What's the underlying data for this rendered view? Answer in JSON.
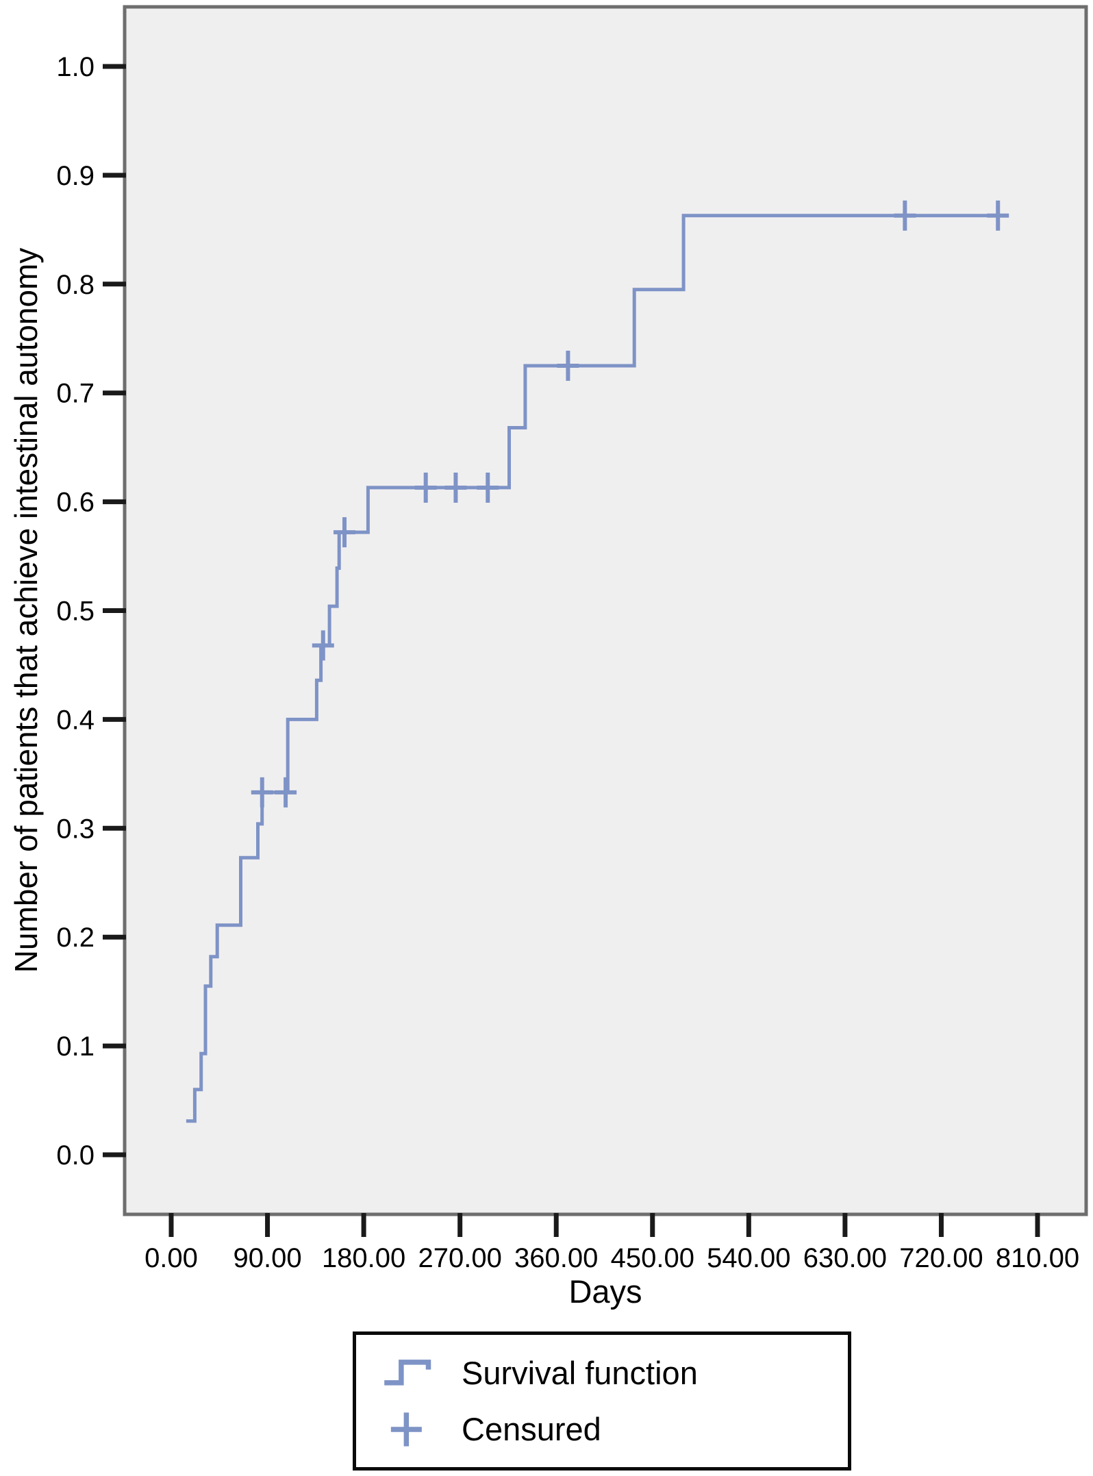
{
  "chart_data": {
    "type": "line",
    "subtype": "kaplan-meier-step",
    "title": "",
    "xlabel": "Days",
    "ylabel": "Number of patients that achieve intestinal autonomy",
    "xlim": [
      -43,
      855
    ],
    "ylim": [
      -0.055,
      1.055
    ],
    "grid": false,
    "legend_position": "below-plot",
    "x_axis": {
      "ticks": [
        {
          "label": "0.00",
          "value": 0
        },
        {
          "label": "90.00",
          "value": 90
        },
        {
          "label": "180.00",
          "value": 180
        },
        {
          "label": "270.00",
          "value": 270
        },
        {
          "label": "360.00",
          "value": 360
        },
        {
          "label": "450.00",
          "value": 450
        },
        {
          "label": "540.00",
          "value": 540
        },
        {
          "label": "630.00",
          "value": 630
        },
        {
          "label": "720.00",
          "value": 720
        },
        {
          "label": "810.00",
          "value": 810
        }
      ]
    },
    "y_axis": {
      "ticks": [
        {
          "label": "0.0",
          "value": 0.0
        },
        {
          "label": "0.1",
          "value": 0.1
        },
        {
          "label": "0.2",
          "value": 0.2
        },
        {
          "label": "0.3",
          "value": 0.3
        },
        {
          "label": "0.4",
          "value": 0.4
        },
        {
          "label": "0.5",
          "value": 0.5
        },
        {
          "label": "0.6",
          "value": 0.6
        },
        {
          "label": "0.7",
          "value": 0.7
        },
        {
          "label": "0.8",
          "value": 0.8
        },
        {
          "label": "0.9",
          "value": 0.9
        },
        {
          "label": "1.0",
          "value": 1.0
        }
      ]
    },
    "series": [
      {
        "name": "Survival function",
        "points": [
          [
            14,
            0.031
          ],
          [
            22,
            0.031
          ],
          [
            22,
            0.06
          ],
          [
            28,
            0.06
          ],
          [
            28,
            0.093
          ],
          [
            32,
            0.093
          ],
          [
            32,
            0.155
          ],
          [
            37,
            0.155
          ],
          [
            37,
            0.182
          ],
          [
            43,
            0.182
          ],
          [
            43,
            0.211
          ],
          [
            65,
            0.211
          ],
          [
            65,
            0.273
          ],
          [
            81,
            0.273
          ],
          [
            81,
            0.304
          ],
          [
            85,
            0.304
          ],
          [
            85,
            0.333
          ],
          [
            109,
            0.333
          ],
          [
            109,
            0.4
          ],
          [
            136,
            0.4
          ],
          [
            136,
            0.436
          ],
          [
            140,
            0.436
          ],
          [
            140,
            0.468
          ],
          [
            148,
            0.468
          ],
          [
            148,
            0.504
          ],
          [
            155,
            0.504
          ],
          [
            155,
            0.539
          ],
          [
            157,
            0.539
          ],
          [
            157,
            0.572
          ],
          [
            184,
            0.572
          ],
          [
            184,
            0.613
          ],
          [
            316,
            0.613
          ],
          [
            316,
            0.668
          ],
          [
            331,
            0.668
          ],
          [
            331,
            0.725
          ],
          [
            433,
            0.725
          ],
          [
            433,
            0.795
          ],
          [
            479,
            0.795
          ],
          [
            479,
            0.863
          ],
          [
            773,
            0.863
          ]
        ],
        "censored": [
          [
            85,
            0.333
          ],
          [
            107,
            0.333
          ],
          [
            142,
            0.468
          ],
          [
            162,
            0.572
          ],
          [
            238,
            0.613
          ],
          [
            266,
            0.613
          ],
          [
            296,
            0.613
          ],
          [
            371,
            0.725
          ],
          [
            686,
            0.863
          ],
          [
            773,
            0.863
          ]
        ]
      }
    ]
  },
  "legend": {
    "items": [
      {
        "label": "Survival function",
        "marker": "step-line-icon"
      },
      {
        "label": "Censured",
        "marker": "plus-icon"
      }
    ]
  },
  "colors": {
    "line": "#7e93c6",
    "plot_background": "#f0eff0",
    "frame": "#6e6e6e",
    "tick": "#1a1a1a",
    "text": "#000000"
  }
}
